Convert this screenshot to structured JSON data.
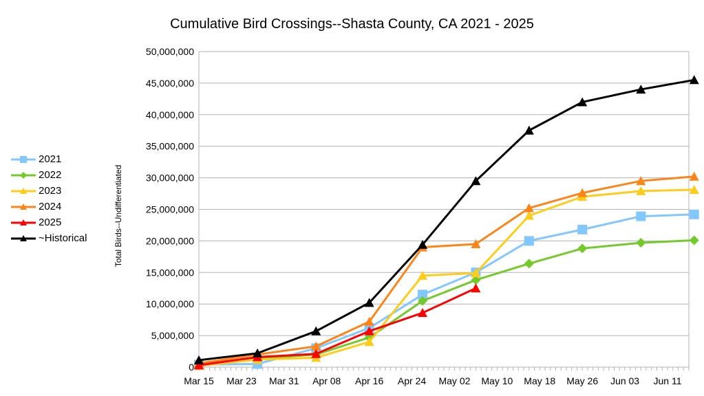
{
  "chart_data": {
    "type": "line",
    "title": "Cumulative Bird Crossings--Shasta County, CA 2021 - 2025",
    "xlabel": "",
    "ylabel": "Total Birds--Undifferentiated",
    "ylim": [
      0,
      50000000
    ],
    "yticks": [
      0,
      5000000,
      10000000,
      15000000,
      20000000,
      25000000,
      30000000,
      35000000,
      40000000,
      45000000,
      50000000
    ],
    "ytick_labels": [
      "0",
      "5,000,000",
      "10,000,000",
      "15,000,000",
      "20,000,000",
      "25,000,000",
      "30,000,000",
      "35,000,000",
      "40,000,000",
      "45,000,000",
      "50,000,000"
    ],
    "xtick_labels": [
      "Mar 15",
      "Mar 23",
      "Mar 31",
      "Apr 08",
      "Apr 16",
      "Apr 24",
      "May 02",
      "May 10",
      "May 18",
      "May 26",
      "Jun 03",
      "Jun 11"
    ],
    "x_days": [
      0,
      11,
      22,
      32,
      42,
      52,
      62,
      72,
      83,
      93
    ],
    "grid": true,
    "legend_position": "left",
    "series": [
      {
        "name": "2021",
        "color": "#83c7ff",
        "marker": "square",
        "values": [
          400000,
          500000,
          3000000,
          6200000,
          11500000,
          15000000,
          20000000,
          21800000,
          23900000,
          24200000
        ]
      },
      {
        "name": "2022",
        "color": "#74c92b",
        "marker": "diamond",
        "values": [
          300000,
          1300000,
          2000000,
          4700000,
          10500000,
          13800000,
          16400000,
          18800000,
          19700000,
          20100000
        ]
      },
      {
        "name": "2023",
        "color": "#ffcc1a",
        "marker": "triangle",
        "values": [
          200000,
          1200000,
          1500000,
          4000000,
          14500000,
          14900000,
          24000000,
          27000000,
          27900000,
          28100000
        ]
      },
      {
        "name": "2024",
        "color": "#ff8418",
        "marker": "triangle",
        "values": [
          600000,
          2000000,
          3300000,
          7200000,
          19000000,
          19500000,
          25200000,
          27600000,
          29500000,
          30200000
        ]
      },
      {
        "name": "2025",
        "color": "#ff0000",
        "marker": "triangle",
        "values": [
          300000,
          1600000,
          2100000,
          5700000,
          8600000,
          12500000,
          null,
          null,
          null,
          null
        ]
      },
      {
        "name": "~Historical",
        "color": "#000000",
        "marker": "triangle",
        "values": [
          1100000,
          2200000,
          5700000,
          10200000,
          19400000,
          29500000,
          37500000,
          42000000,
          44000000,
          45500000
        ]
      }
    ]
  }
}
